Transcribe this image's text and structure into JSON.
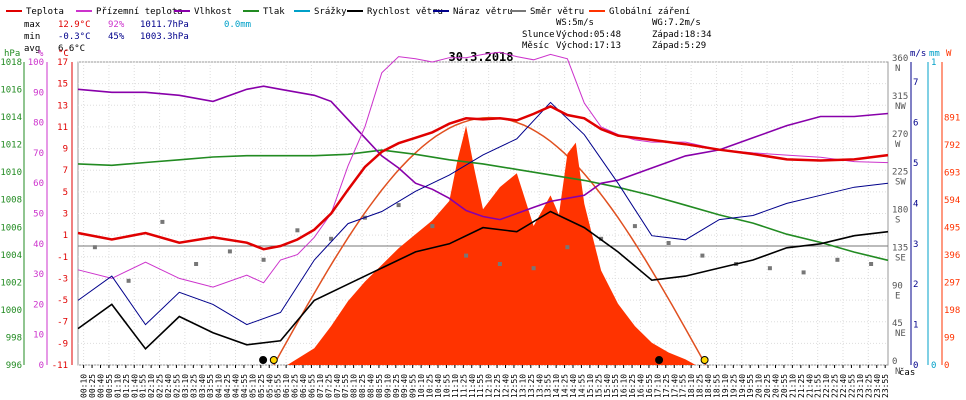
{
  "legend": [
    {
      "label": "Teplota",
      "color": "#e00000"
    },
    {
      "label": "Přízemní teplota",
      "color": "#cc33cc"
    },
    {
      "label": "Vlhkost",
      "color": "#8800aa"
    },
    {
      "label": "Tlak",
      "color": "#228b22"
    },
    {
      "label": "Srážky",
      "color": "#00a0c8"
    },
    {
      "label": "Rychlost větru",
      "color": "#000000"
    },
    {
      "label": "Náraz větru",
      "color": "#00008b"
    },
    {
      "label": "Směr větru",
      "color": "#777777"
    },
    {
      "label": "Globální záření",
      "color": "#ff3300"
    }
  ],
  "stats": {
    "max": {
      "label": "max",
      "temp": "12.9°C",
      "hum": "92%",
      "press": "1011.7hPa",
      "rain": "0.0mm"
    },
    "min": {
      "label": "min",
      "temp": "-0.3°C",
      "hum": "45%",
      "press": "1003.3hPa"
    },
    "avg": {
      "label": "avg",
      "temp": "6.6°C"
    }
  },
  "wind_info": {
    "ws": "WS:5m/s",
    "wg": "WG:7.2m/s"
  },
  "sun": {
    "label": "Slunce",
    "rise": "Východ:05:48",
    "set": "Západ:18:34"
  },
  "moon": {
    "label": "Měsíc",
    "rise": "Východ:17:13",
    "set": "Západ:5:29"
  },
  "chart_data": {
    "type": "line",
    "title": "30.3.2018",
    "xlabel": "čas",
    "x_ticks": [
      "00:10",
      "00:25",
      "00:40",
      "00:55",
      "01:10",
      "01:25",
      "01:40",
      "01:55",
      "02:10",
      "02:25",
      "02:40",
      "02:55",
      "03:10",
      "03:25",
      "03:40",
      "03:55",
      "04:10",
      "04:25",
      "04:40",
      "04:55",
      "05:10",
      "05:25",
      "05:40",
      "05:55",
      "06:10",
      "06:25",
      "06:40",
      "06:55",
      "07:10",
      "07:25",
      "07:40",
      "07:55",
      "08:10",
      "08:25",
      "08:40",
      "08:55",
      "09:10",
      "09:25",
      "09:40",
      "09:55",
      "10:10",
      "10:25",
      "10:40",
      "10:55",
      "11:10",
      "11:25",
      "11:40",
      "11:55",
      "12:10",
      "12:25",
      "12:40",
      "12:55",
      "13:10",
      "13:25",
      "13:40",
      "13:55",
      "14:10",
      "14:25",
      "14:40",
      "14:55",
      "15:10",
      "15:25",
      "15:40",
      "15:55",
      "16:10",
      "16:25",
      "16:40",
      "16:55",
      "17:10",
      "17:25",
      "17:40",
      "17:55",
      "18:10",
      "18:25",
      "18:40",
      "18:55",
      "19:10",
      "19:25",
      "19:40",
      "19:55",
      "20:10",
      "20:25",
      "20:40",
      "20:55",
      "21:10",
      "21:25",
      "21:40",
      "21:55",
      "22:10",
      "22:25",
      "22:40",
      "22:55",
      "23:10",
      "23:25",
      "23:40",
      "23:55"
    ],
    "axes": {
      "pressure": {
        "unit": "hPa",
        "ticks": [
          "996",
          "998",
          "1000",
          "1002",
          "1004",
          "1006",
          "1008",
          "1010",
          "1012",
          "1014",
          "1016",
          "1018"
        ],
        "color": "#228b22"
      },
      "humidity": {
        "unit": "%",
        "ticks": [
          "0",
          "10",
          "20",
          "30",
          "40",
          "50",
          "60",
          "70",
          "80",
          "90",
          "100"
        ],
        "color": "#cc33cc"
      },
      "temperature": {
        "unit": "°C",
        "ticks": [
          "-11",
          "-9",
          "-7",
          "-5",
          "-3",
          "-1",
          "1",
          "3",
          "5",
          "7",
          "9",
          "11",
          "13",
          "15",
          "17"
        ],
        "color": "#e00000"
      },
      "wind_dir": {
        "unit": "°",
        "ticks": [
          "0",
          "45",
          "90",
          "135",
          "180",
          "225",
          "270",
          "315",
          "360"
        ],
        "labels": [
          "N",
          "NE",
          "E",
          "SE",
          "S",
          "SW",
          "W",
          "NW",
          "N"
        ],
        "color": "#777777"
      },
      "wind_speed": {
        "unit": "m/s",
        "ticks": [
          "0",
          "1",
          "2",
          "3",
          "4",
          "5",
          "6",
          "7"
        ],
        "color": "#00008b"
      },
      "rain": {
        "unit": "mm",
        "ticks": [
          "0",
          "1"
        ],
        "color": "#00a0c8"
      },
      "radiation": {
        "unit": "W",
        "ticks": [
          "0",
          "99",
          "198",
          "297",
          "396",
          "495",
          "594",
          "693",
          "792",
          "891"
        ],
        "color": "#ff3300"
      }
    },
    "series": [
      {
        "name": "Teplota",
        "unit": "°C",
        "color": "#e00000",
        "x": [
          0,
          1,
          2,
          3,
          4,
          5,
          5.5,
          6,
          6.5,
          7,
          7.5,
          8,
          8.5,
          9,
          9.5,
          10,
          10.5,
          11,
          11.5,
          12,
          12.5,
          13,
          13.5,
          14,
          14.5,
          15,
          15.5,
          16,
          16.5,
          17,
          18,
          19,
          20,
          21,
          22,
          23,
          24
        ],
        "values": [
          1.2,
          0.6,
          1.2,
          0.3,
          0.8,
          0.3,
          -0.3,
          0.0,
          0.6,
          1.5,
          3.0,
          5.2,
          7.3,
          8.7,
          9.5,
          10.0,
          10.5,
          11.3,
          11.8,
          11.7,
          11.8,
          11.6,
          12.2,
          12.9,
          12.1,
          11.8,
          10.8,
          10.2,
          10.0,
          9.8,
          9.4,
          8.9,
          8.5,
          8.0,
          7.9,
          8.0,
          8.4
        ]
      },
      {
        "name": "Přízemní teplota",
        "unit": "°C",
        "color": "#cc33cc",
        "x": [
          0,
          1,
          2,
          3,
          4,
          5,
          5.5,
          6,
          6.5,
          7,
          7.5,
          8,
          8.5,
          9,
          9.5,
          10,
          10.5,
          11,
          11.5,
          12,
          12.5,
          13,
          13.5,
          14,
          14.5,
          15,
          15.5,
          16,
          16.5,
          17,
          18,
          19,
          20,
          21,
          22,
          23,
          24
        ],
        "values": [
          -2.2,
          -3.0,
          -1.5,
          -3.0,
          -3.8,
          -2.7,
          -3.4,
          -1.3,
          -0.8,
          0.8,
          3.0,
          7.4,
          11.0,
          16.0,
          17.5,
          17.3,
          17.0,
          17.4,
          17.4,
          17.7,
          17.9,
          17.5,
          17.2,
          17.7,
          17.3,
          13.2,
          11.0,
          10.3,
          9.8,
          9.6,
          9.6,
          8.9,
          8.6,
          8.4,
          8.2,
          7.8,
          7.7
        ]
      },
      {
        "name": "Vlhkost",
        "unit": "%",
        "color": "#8800aa",
        "x": [
          0,
          1,
          2,
          3,
          4,
          5,
          5.5,
          6,
          6.5,
          7,
          7.5,
          8,
          8.5,
          9,
          9.5,
          10,
          10.5,
          11,
          11.5,
          12,
          12.5,
          13,
          13.5,
          14,
          14.5,
          15,
          15.5,
          16,
          16.5,
          17,
          18,
          19,
          20,
          21,
          22,
          23,
          24
        ],
        "values": [
          91,
          90,
          90,
          89,
          87,
          91,
          92,
          91,
          90,
          89,
          87,
          81,
          75,
          69,
          65,
          60,
          58,
          55,
          51,
          49,
          48,
          50,
          52,
          54,
          55,
          56,
          60,
          61,
          63,
          65,
          69,
          71,
          75,
          79,
          82,
          82,
          83
        ]
      },
      {
        "name": "Tlak",
        "unit": "hPa",
        "color": "#228b22",
        "x": [
          0,
          1,
          2,
          3,
          4,
          5,
          6,
          7,
          8,
          9,
          10,
          11,
          12,
          13,
          14,
          15,
          16,
          17,
          18,
          19,
          20,
          21,
          22,
          23,
          24
        ],
        "values": [
          1010.6,
          1010.5,
          1010.7,
          1010.9,
          1011.1,
          1011.2,
          1011.2,
          1011.2,
          1011.3,
          1011.6,
          1011.3,
          1010.9,
          1010.6,
          1010.2,
          1009.8,
          1009.4,
          1008.9,
          1008.3,
          1007.6,
          1006.9,
          1006.3,
          1005.5,
          1004.9,
          1004.2,
          1003.6
        ]
      },
      {
        "name": "Rychlost větru",
        "unit": "m/s",
        "color": "#000000",
        "x": [
          0,
          1,
          2,
          3,
          4,
          5,
          6,
          7,
          8,
          9,
          10,
          11,
          12,
          13,
          14,
          15,
          16,
          17,
          18,
          19,
          20,
          21,
          22,
          23,
          24
        ],
        "values": [
          0.9,
          1.5,
          0.4,
          1.2,
          0.8,
          0.5,
          0.6,
          1.6,
          2.0,
          2.4,
          2.8,
          3.0,
          3.4,
          3.3,
          3.8,
          3.4,
          2.8,
          2.1,
          2.2,
          2.4,
          2.6,
          2.9,
          3.0,
          3.2,
          3.3
        ]
      },
      {
        "name": "Náraz větru",
        "unit": "m/s",
        "color": "#00008b",
        "x": [
          0,
          1,
          2,
          3,
          4,
          5,
          6,
          7,
          8,
          9,
          10,
          11,
          12,
          13,
          14,
          15,
          16,
          17,
          18,
          19,
          20,
          21,
          22,
          23,
          24
        ],
        "values": [
          1.6,
          2.2,
          1.0,
          1.8,
          1.5,
          1.0,
          1.3,
          2.6,
          3.5,
          3.8,
          4.3,
          4.7,
          5.2,
          5.6,
          6.5,
          5.7,
          4.5,
          3.2,
          3.1,
          3.6,
          3.7,
          4.0,
          4.2,
          4.4,
          4.5
        ]
      },
      {
        "name": "Směr větru",
        "unit": "°",
        "color": "#777777",
        "x": [
          0.5,
          1.5,
          2.5,
          3.5,
          4.5,
          5.5,
          6.5,
          7.5,
          8.5,
          9.5,
          10.5,
          11.5,
          12.5,
          13.5,
          14.5,
          15.5,
          16.5,
          17.5,
          18.5,
          19.5,
          20.5,
          21.5,
          22.5,
          23.5
        ],
        "values": [
          140,
          100,
          170,
          120,
          135,
          125,
          160,
          150,
          175,
          190,
          165,
          130,
          120,
          115,
          140,
          150,
          165,
          145,
          130,
          120,
          115,
          110,
          125,
          120
        ]
      },
      {
        "name": "Globální záření",
        "unit": "W",
        "color": "#ff3300",
        "x": [
          6.2,
          7,
          7.5,
          8,
          8.5,
          9,
          9.5,
          10,
          10.5,
          11,
          11.25,
          11.5,
          11.75,
          12,
          12.5,
          13,
          13.5,
          14,
          14.25,
          14.5,
          14.75,
          15,
          15.5,
          16,
          16.5,
          17,
          17.5,
          18,
          18.3
        ],
        "values": [
          0,
          60,
          140,
          230,
          300,
          360,
          420,
          470,
          520,
          590,
          740,
          860,
          700,
          560,
          640,
          690,
          500,
          610,
          540,
          760,
          800,
          580,
          340,
          220,
          140,
          80,
          45,
          20,
          0
        ]
      },
      {
        "name": "Srážky",
        "unit": "mm",
        "color": "#00a0c8",
        "x": [
          0,
          24
        ],
        "values": [
          0.0,
          0.0
        ]
      }
    ],
    "markers": {
      "sunrise": "05:48",
      "sunset": "18:34",
      "moonrise": "17:13",
      "moonset": "5:29"
    }
  }
}
